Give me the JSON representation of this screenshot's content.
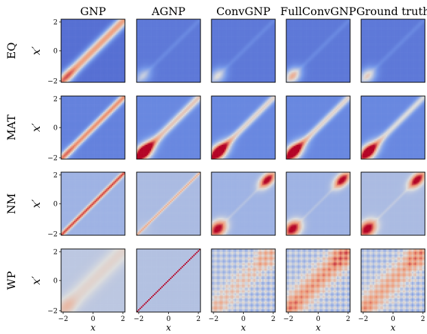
{
  "chart_data": {
    "type": "heatmap",
    "columns": [
      "GNP",
      "AGNP",
      "ConvGNP",
      "FullConvGNP",
      "Ground truth"
    ],
    "rows": [
      "EQ",
      "MAT",
      "NM",
      "WP"
    ],
    "ylabel": "x′",
    "xlabel": "x",
    "xticks": [
      "−2",
      "0",
      "2"
    ],
    "yticks": [
      "2",
      "0",
      "−2"
    ],
    "xlim": [
      -2,
      2
    ],
    "ylim": [
      -2,
      2
    ],
    "colormap": "coolwarm",
    "colors": {
      "low": "#3b4cc0",
      "mid": "#dddddd",
      "high": "#b40426"
    },
    "panels": [
      [
        {
          "base": 0.12,
          "diag": 0.62,
          "width": 0.45,
          "blob": 0.2
        },
        {
          "base": 0.15,
          "diag": 0.05,
          "width": 0.2,
          "blob": 0.35
        },
        {
          "base": 0.15,
          "diag": 0.05,
          "width": 0.2,
          "blob": 0.45
        },
        {
          "base": 0.15,
          "diag": 0.05,
          "width": 0.2,
          "blob": 0.7
        },
        {
          "base": 0.15,
          "diag": 0.05,
          "width": 0.2,
          "blob": 0.55
        }
      ],
      [
        {
          "base": 0.18,
          "diag": 0.6,
          "width": 0.3,
          "blob": 0.1
        },
        {
          "base": 0.2,
          "diag": 0.4,
          "width": 0.35,
          "blob": 1.0
        },
        {
          "base": 0.2,
          "diag": 0.35,
          "width": 0.3,
          "blob": 0.95
        },
        {
          "base": 0.2,
          "diag": 0.35,
          "width": 0.3,
          "blob": 0.92
        },
        {
          "base": 0.2,
          "diag": 0.3,
          "width": 0.3,
          "blob": 0.88
        }
      ],
      [
        {
          "base": 0.35,
          "diag": 0.55,
          "width": 0.18,
          "blob": 0.0
        },
        {
          "base": 0.38,
          "diag": 0.3,
          "width": 0.12,
          "blob": 0.05
        },
        {
          "base": 0.35,
          "diag": 0.05,
          "width": 0.12,
          "blob": 1.0
        },
        {
          "base": 0.35,
          "diag": 0.05,
          "width": 0.12,
          "blob": 1.0
        },
        {
          "base": 0.38,
          "diag": 0.05,
          "width": 0.12,
          "blob": 1.0
        }
      ],
      [
        {
          "base": 0.42,
          "diag": 0.12,
          "width": 0.8,
          "blob": 0.15
        },
        {
          "base": 0.4,
          "diag": 0.7,
          "width": 0.04,
          "blob": 0.0
        },
        {
          "base": 0.42,
          "diag": 0.15,
          "width": 0.9,
          "blob": 0.1
        },
        {
          "base": 0.42,
          "diag": 0.3,
          "width": 1.0,
          "blob": 0.1
        },
        {
          "base": 0.42,
          "diag": 0.25,
          "width": 1.0,
          "blob": 0.1
        }
      ]
    ]
  }
}
